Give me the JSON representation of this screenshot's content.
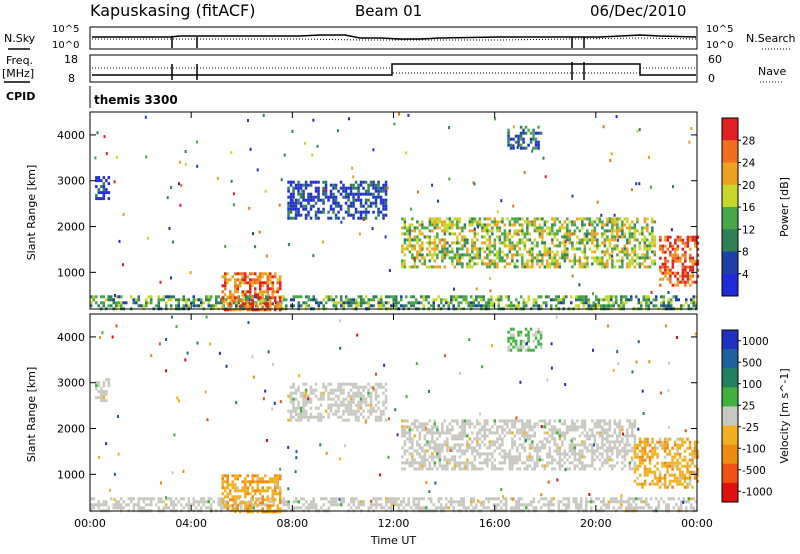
{
  "header": {
    "station": "Kapuskasing (fitACF)",
    "beam": "Beam 01",
    "date": "06/Dec/2010"
  },
  "noise_panel": {
    "left_label": "N.Sky",
    "right_label": "N.Search",
    "left_ticks": [
      "10^5",
      "10^0"
    ],
    "right_ticks": [
      "10^5",
      "10^0"
    ]
  },
  "freq_panel": {
    "left_label_1": "Freq.",
    "left_label_2": "[MHz]",
    "right_label": "Nave",
    "left_ticks": [
      "18",
      "8"
    ],
    "right_ticks": [
      "60",
      "0"
    ]
  },
  "cpid": {
    "label": "CPID",
    "value": "themis 3300"
  },
  "colors": {
    "power": [
      "#1f2bd6",
      "#1e3fa8",
      "#2f7f57",
      "#4aa64a",
      "#c8d82a",
      "#f0a020",
      "#f07020",
      "#e02020"
    ],
    "velocity": [
      "#e01010",
      "#f05010",
      "#f08a10",
      "#f0b020",
      "#c8c8c0",
      "#40b040",
      "#208060",
      "#2060a0",
      "#2030c0"
    ],
    "grid": "#000000"
  },
  "chart_data": [
    {
      "type": "heatmap",
      "title": "Power",
      "ylabel": "Slant Range [km]",
      "xlabel": "",
      "x_ticks": [
        "00:00",
        "04:00",
        "08:00",
        "12:00",
        "16:00",
        "20:00",
        "00:00"
      ],
      "x_tick_hours": [
        0,
        4,
        8,
        12,
        16,
        20,
        24
      ],
      "y_ticks": [
        1000,
        2000,
        3000,
        4000
      ],
      "ylim": [
        200,
        4500
      ],
      "xlim": [
        0,
        24
      ],
      "colorbar": {
        "label": "Power [dB]",
        "ticks": [
          "4",
          "8",
          "12",
          "16",
          "20",
          "24",
          "28"
        ],
        "range": [
          0,
          30
        ]
      },
      "regions": [
        {
          "name": "near-range-band",
          "x": [
            0,
            24
          ],
          "y": [
            200,
            500
          ],
          "level": 12
        },
        {
          "name": "early-patch",
          "x": [
            0.2,
            0.7
          ],
          "y": [
            2600,
            3100
          ],
          "level": 3
        },
        {
          "name": "morning-patch",
          "x": [
            5.2,
            7.5
          ],
          "y": [
            200,
            1000
          ],
          "level": 24
        },
        {
          "name": "arc-patch",
          "x": [
            7.8,
            11.7
          ],
          "y": [
            2200,
            3000
          ],
          "level": 5
        },
        {
          "name": "afternoon-band",
          "x": [
            12.3,
            22.3
          ],
          "y": [
            1100,
            2200
          ],
          "level": 16
        },
        {
          "name": "small-patch",
          "x": [
            16.5,
            17.8
          ],
          "y": [
            3700,
            4200
          ],
          "level": 8
        },
        {
          "name": "late-patch",
          "x": [
            22.5,
            24
          ],
          "y": [
            700,
            1800
          ],
          "level": 26
        }
      ]
    },
    {
      "type": "heatmap",
      "title": "Velocity",
      "ylabel": "Slant Range [km]",
      "xlabel": "Time UT",
      "x_ticks": [
        "00:00",
        "04:00",
        "08:00",
        "12:00",
        "16:00",
        "20:00",
        "00:00"
      ],
      "x_tick_hours": [
        0,
        4,
        8,
        12,
        16,
        20,
        24
      ],
      "y_ticks": [
        1000,
        2000,
        3000,
        4000
      ],
      "ylim": [
        200,
        4500
      ],
      "xlim": [
        0,
        24
      ],
      "colorbar": {
        "label": "Velocity [m s^-1]",
        "ticks": [
          "1000",
          "500",
          "100",
          "25",
          "-25",
          "-100",
          "-500",
          "-1000"
        ],
        "range": [
          -1200,
          1200
        ]
      },
      "regions": [
        {
          "name": "near-range-band",
          "x": [
            0,
            24
          ],
          "y": [
            200,
            500
          ],
          "level": 0
        },
        {
          "name": "early-patch",
          "x": [
            0.2,
            0.7
          ],
          "y": [
            2600,
            3100
          ],
          "level": 0
        },
        {
          "name": "morning-patch",
          "x": [
            5.2,
            7.5
          ],
          "y": [
            200,
            1000
          ],
          "level": -300
        },
        {
          "name": "arc-patch",
          "x": [
            7.8,
            11.7
          ],
          "y": [
            2200,
            3000
          ],
          "level": 0
        },
        {
          "name": "afternoon-band",
          "x": [
            12.3,
            21.5
          ],
          "y": [
            1100,
            2200
          ],
          "level": 0
        },
        {
          "name": "small-patch",
          "x": [
            16.5,
            17.8
          ],
          "y": [
            3700,
            4200
          ],
          "level": 200
        },
        {
          "name": "late-patch",
          "x": [
            21.5,
            24
          ],
          "y": [
            700,
            1800
          ],
          "level": -300
        }
      ]
    }
  ]
}
